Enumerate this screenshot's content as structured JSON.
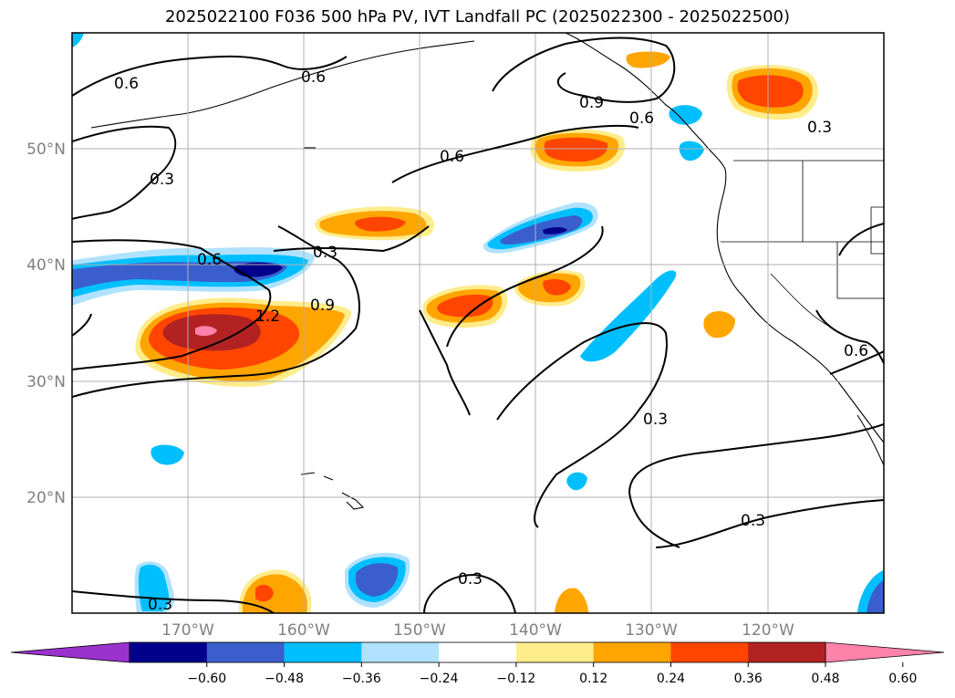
{
  "title": "2025022100 F036 500 hPa PV, IVT Landfall PC (2025022300 - 2025022500)",
  "lat_labels": [
    "50°N",
    "40°N",
    "30°N",
    "20°N"
  ],
  "lon_labels": [
    "170°W",
    "160°W",
    "150°W",
    "140°W",
    "130°W",
    "120°W"
  ],
  "colorbar": {
    "ticks": [
      "−0.60",
      "−0.48",
      "−0.36",
      "−0.24",
      "−0.12",
      "0.12",
      "0.24",
      "0.36",
      "0.48",
      "0.60"
    ],
    "colors": [
      "#9a32cd",
      "#00008b",
      "#3a5fcd",
      "#00bfff",
      "#b0e2ff",
      "#ffffff",
      "#ffec8b",
      "#ffa500",
      "#ff4500",
      "#b22222",
      "#ff82ab"
    ]
  },
  "contour_labels": [
    "0.6",
    "0.6",
    "0.3",
    "0.6",
    "0.3",
    "0.9",
    "0.6",
    "0.6",
    "0.3",
    "1.2",
    "0.9",
    "0.3",
    "0.3",
    "0.3",
    "0.3",
    "0.6"
  ]
}
